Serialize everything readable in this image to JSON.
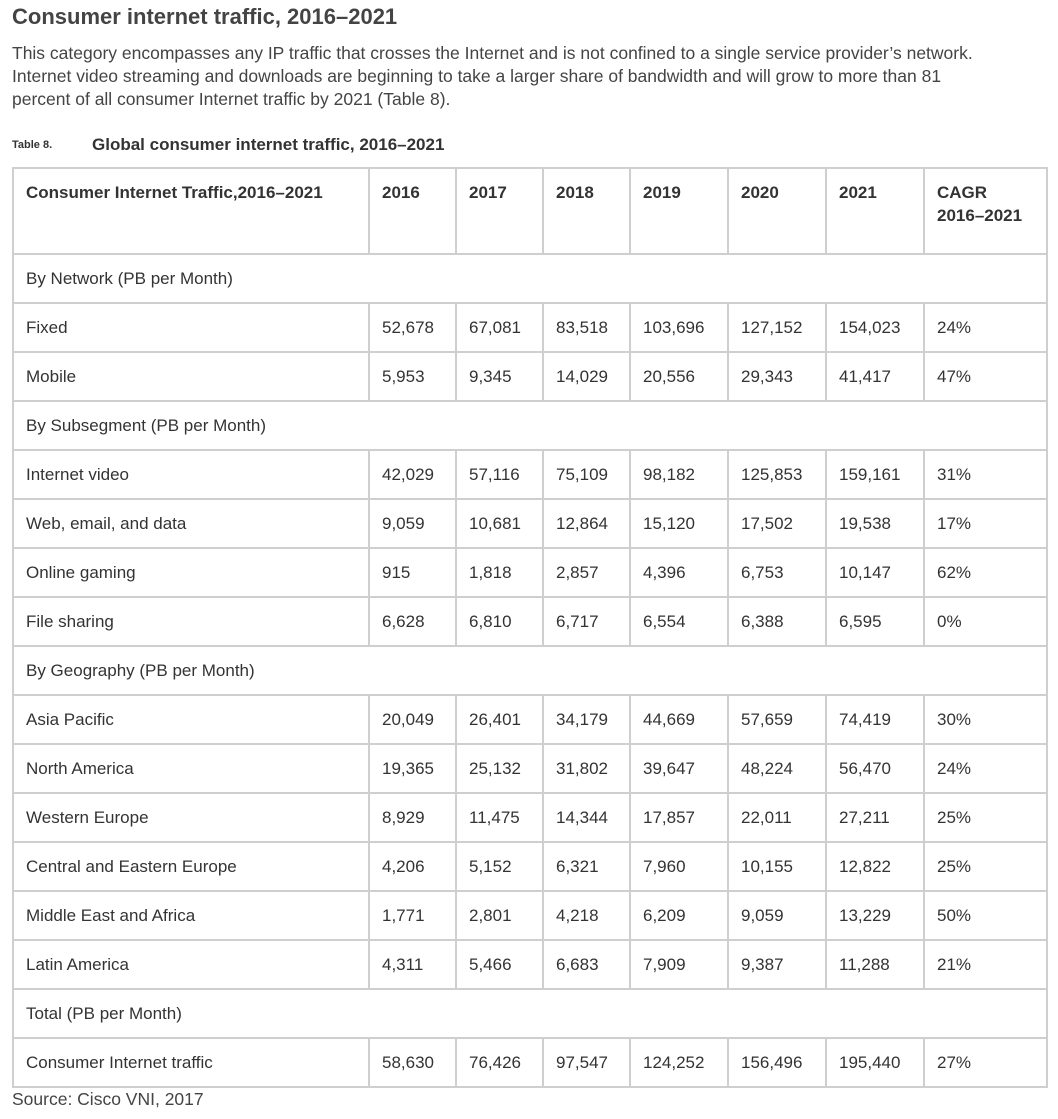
{
  "heading": "Consumer internet traffic, 2016–2021",
  "intro": "This category encompasses any IP traffic that crosses the Internet and is not confined to a single service provider’s network. Internet video streaming and downloads are beginning to take a larger share of bandwidth and will grow to more than 81 percent of all consumer Internet traffic by 2021 (Table 8).",
  "table_caption": {
    "number": "Table 8.",
    "title": "Global consumer internet traffic, 2016–2021"
  },
  "table": {
    "headers": [
      "Consumer Internet Traffic,2016–2021",
      "2016",
      "2017",
      "2018",
      "2019",
      "2020",
      "2021",
      "CAGR 2016–2021"
    ],
    "rows": [
      {
        "section": "By Network (PB per Month)"
      },
      {
        "cells": [
          "Fixed",
          "52,678",
          "67,081",
          "83,518",
          "103,696",
          "127,152",
          "154,023",
          "24%"
        ]
      },
      {
        "cells": [
          "Mobile",
          "5,953",
          "9,345",
          "14,029",
          "20,556",
          "29,343",
          "41,417",
          "47%"
        ]
      },
      {
        "section": "By Subsegment (PB per Month)"
      },
      {
        "cells": [
          "Internet video",
          "42,029",
          "57,116",
          "75,109",
          "98,182",
          "125,853",
          "159,161",
          "31%"
        ]
      },
      {
        "cells": [
          "Web, email, and data",
          "9,059",
          "10,681",
          "12,864",
          "15,120",
          "17,502",
          "19,538",
          "17%"
        ]
      },
      {
        "cells": [
          "Online gaming",
          "915",
          "1,818",
          "2,857",
          "4,396",
          "6,753",
          "10,147",
          "62%"
        ]
      },
      {
        "cells": [
          "File sharing",
          "6,628",
          "6,810",
          "6,717",
          "6,554",
          "6,388",
          "6,595",
          "0%"
        ]
      },
      {
        "section": "By Geography (PB per Month)"
      },
      {
        "cells": [
          "Asia Pacific",
          "20,049",
          "26,401",
          "34,179",
          "44,669",
          "57,659",
          "74,419",
          "30%"
        ]
      },
      {
        "cells": [
          "North America",
          "19,365",
          "25,132",
          "31,802",
          "39,647",
          "48,224",
          "56,470",
          "24%"
        ]
      },
      {
        "cells": [
          "Western Europe",
          "8,929",
          "11,475",
          "14,344",
          "17,857",
          "22,011",
          "27,211",
          "25%"
        ]
      },
      {
        "cells": [
          "Central and Eastern Europe",
          "4,206",
          "5,152",
          "6,321",
          "7,960",
          "10,155",
          "12,822",
          "25%"
        ]
      },
      {
        "cells": [
          "Middle East and Africa",
          "1,771",
          "2,801",
          "4,218",
          "6,209",
          "9,059",
          "13,229",
          "50%"
        ]
      },
      {
        "cells": [
          "Latin America",
          "4,311",
          "5,466",
          "6,683",
          "7,909",
          "9,387",
          "11,288",
          "21%"
        ]
      },
      {
        "section": "Total (PB per Month)"
      },
      {
        "cells": [
          "Consumer Internet traffic",
          "58,630",
          "76,426",
          "97,547",
          "124,252",
          "156,496",
          "195,440",
          "27%"
        ]
      }
    ]
  },
  "source": "Source: Cisco VNI, 2017",
  "colors": {
    "border": "#cfcfcf",
    "text": "#333333",
    "heading": "#444444"
  }
}
